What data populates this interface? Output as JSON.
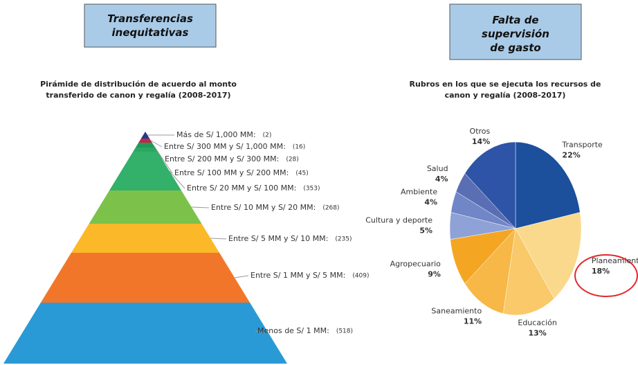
{
  "header": {
    "left_box": "Transferencias inequitativas",
    "right_box": "Falta de supervisión de gasto"
  },
  "chart_data": [
    {
      "type": "pyramid",
      "title": "Pirámide de distribución de acuerdo al monto transferido de canon y regalía (2008-2017)",
      "categories": [
        "Más de S/ 1,000 MM:",
        "Entre S/ 300 MM y S/ 1,000 MM:",
        "Entre S/ 200 MM y S/ 300 MM:",
        "Entre S/ 100 MM y S/ 200 MM:",
        "Entre S/ 20 MM y S/ 100 MM:",
        "Entre S/ 10 MM y S/ 20 MM:",
        "Entre S/ 5 MM y S/ 10 MM:",
        "Entre S/ 1 MM y S/ 5 MM:",
        "Menos de S/ 1 MM:"
      ],
      "values": [
        2,
        16,
        28,
        45,
        353,
        268,
        235,
        409,
        518
      ],
      "value_labels": [
        "(2)",
        "(16)",
        "(28)",
        "(45)",
        "(353)",
        "(268)",
        "(235)",
        "(409)",
        "(518)"
      ],
      "colors": [
        "#1f3c88",
        "#c0264a",
        "#1f9a5a",
        "#2aa860",
        "#33b06a",
        "#7cc24a",
        "#fbb829",
        "#f2762a",
        "#2a9ad6"
      ]
    },
    {
      "type": "pie",
      "title": "Rubros en los que se ejecuta los recursos de canon y regalía (2008-2017)",
      "categories": [
        "Transporte",
        "Planeamiento",
        "Educación",
        "Saneamiento",
        "Agropecuario",
        "Cultura y deporte",
        "Ambiente",
        "Salud",
        "Otros"
      ],
      "values": [
        22,
        18,
        13,
        11,
        9,
        5,
        4,
        4,
        14
      ],
      "value_labels": [
        "22%",
        "18%",
        "13%",
        "11%",
        "9%",
        "5%",
        "4%",
        "4%",
        "14%"
      ],
      "colors": [
        "#1c4f9c",
        "#fbd98c",
        "#f9c96a",
        "#f7b847",
        "#f4a623",
        "#8ea2d8",
        "#7186c6",
        "#5a6eb4",
        "#2d54a6"
      ]
    }
  ]
}
